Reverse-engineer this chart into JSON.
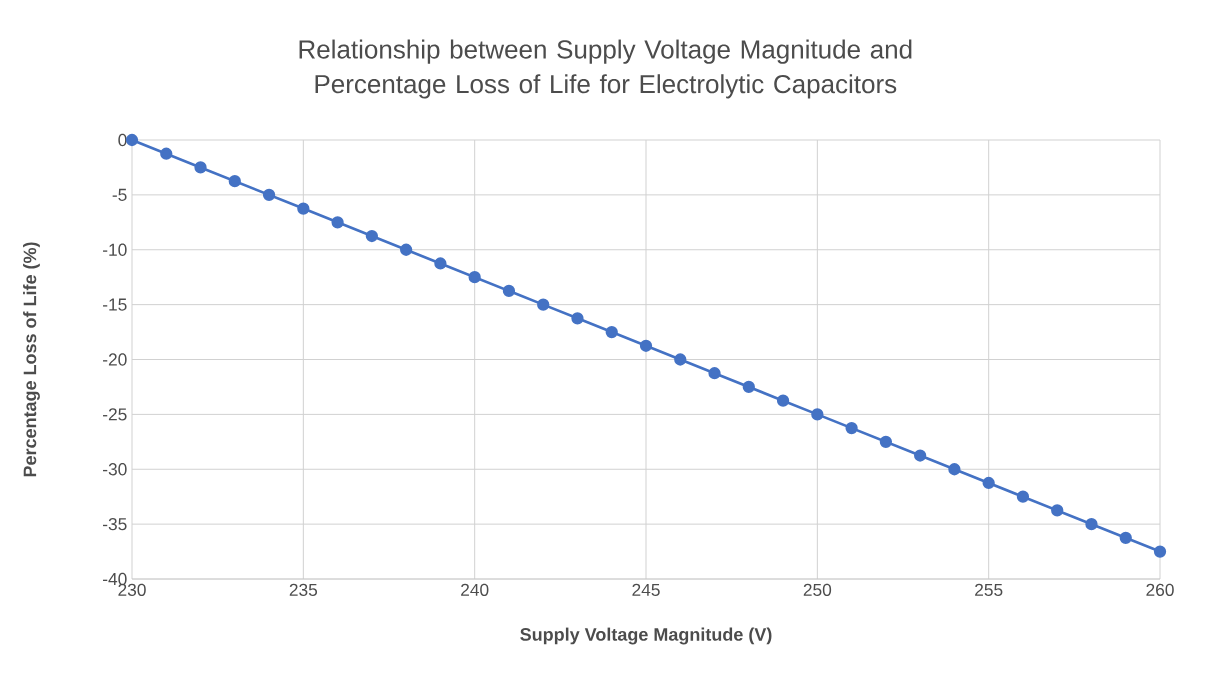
{
  "chart_data": {
    "type": "line",
    "title": "Relationship between Supply Voltage Magnitude and Percentage Loss of Life for Electrolytic Capacitors",
    "xlabel": "Supply Voltage Magnitude (V)",
    "ylabel": "Percentage Loss of Life (%)",
    "x": [
      230,
      231,
      232,
      233,
      234,
      235,
      236,
      237,
      238,
      239,
      240,
      241,
      242,
      243,
      244,
      245,
      246,
      247,
      248,
      249,
      250,
      251,
      252,
      253,
      254,
      255,
      256,
      257,
      258,
      259,
      260
    ],
    "series": [
      {
        "color": "#4472c4",
        "values": [
          0,
          -1.25,
          -2.5,
          -3.75,
          -5,
          -6.25,
          -7.5,
          -8.75,
          -10,
          -11.25,
          -12.5,
          -13.75,
          -15,
          -16.25,
          -17.5,
          -18.75,
          -20,
          -21.25,
          -22.5,
          -23.75,
          -25,
          -26.25,
          -27.5,
          -28.75,
          -30,
          -31.25,
          -32.5,
          -33.75,
          -35,
          -36.25,
          -37.5
        ]
      }
    ],
    "xlim": [
      230,
      260
    ],
    "xticks": [
      230,
      235,
      240,
      245,
      250,
      255,
      260
    ],
    "ylim": [
      -40,
      0
    ],
    "yticks": [
      -40,
      -35,
      -30,
      -25,
      -20,
      -15,
      -10,
      -5,
      0
    ],
    "grid": true,
    "marker": "circle",
    "line_style": "solid"
  }
}
